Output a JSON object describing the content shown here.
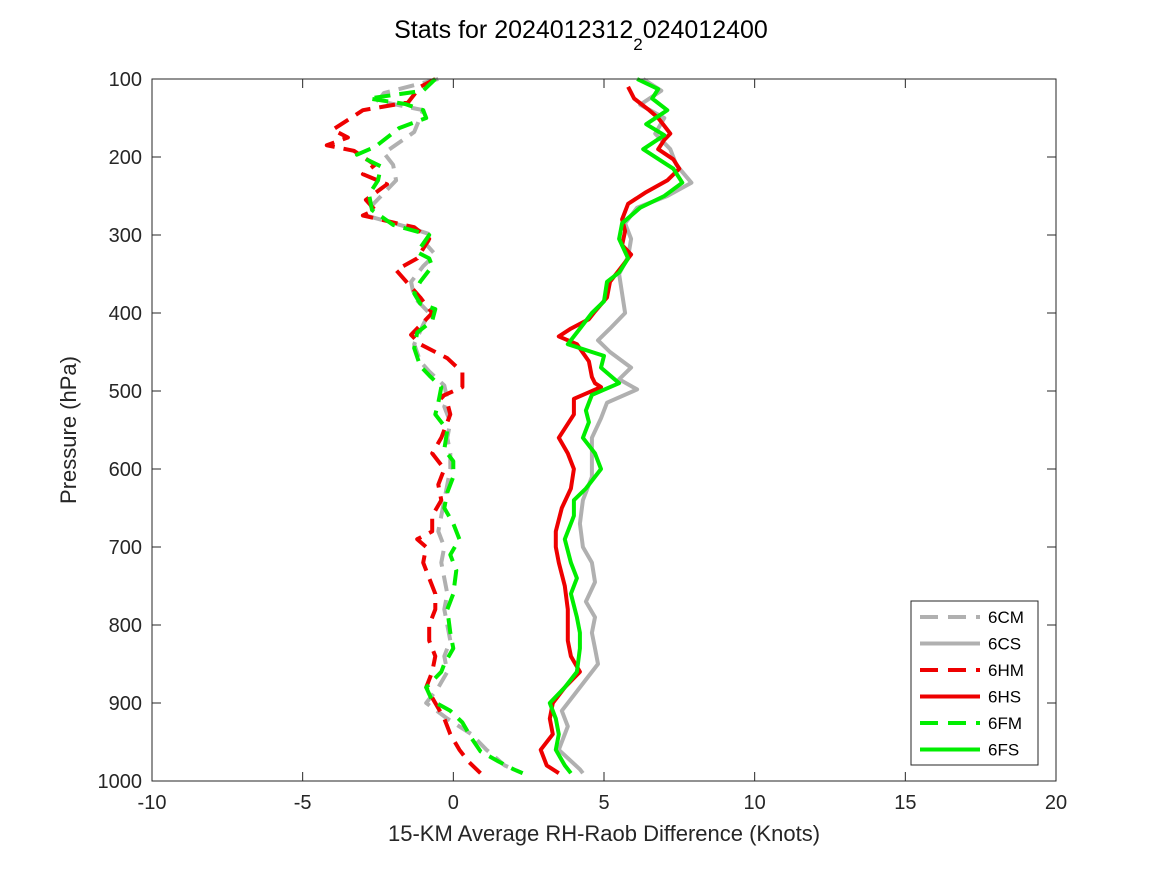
{
  "chart_data": {
    "type": "line",
    "title_main": "Stats for 2024012312",
    "title_sub": "2",
    "title_tail": "024012400",
    "xlabel": "15-KM Average RH-Raob Difference (Knots)",
    "ylabel": "Pressure (hPa)",
    "xlim": [
      -10,
      20
    ],
    "ylim": [
      100,
      1000
    ],
    "y_reversed": true,
    "xticks": [
      "-10",
      "-5",
      "0",
      "5",
      "10",
      "15",
      "20"
    ],
    "yticks": [
      "100",
      "200",
      "300",
      "400",
      "500",
      "600",
      "700",
      "800",
      "900",
      "1000"
    ],
    "grid": false,
    "legend_position": "bottom-right",
    "series": [
      {
        "name": "6CM",
        "color": "#b0b0b0",
        "dash": true,
        "points": [
          [
            -0.5,
            100
          ],
          [
            -2.3,
            118
          ],
          [
            -2.5,
            128
          ],
          [
            -1.0,
            140
          ],
          [
            -1.3,
            168
          ],
          [
            -2.3,
            195
          ],
          [
            -2.0,
            210
          ],
          [
            -1.9,
            230
          ],
          [
            -2.7,
            262
          ],
          [
            -2.9,
            275
          ],
          [
            -1.5,
            290
          ],
          [
            -0.7,
            300
          ],
          [
            -0.9,
            312
          ],
          [
            -0.6,
            325
          ],
          [
            -1.0,
            340
          ],
          [
            -1.4,
            360
          ],
          [
            -1.3,
            380
          ],
          [
            -0.8,
            400
          ],
          [
            -1.0,
            415
          ],
          [
            -1.3,
            440
          ],
          [
            -1.1,
            462
          ],
          [
            -0.8,
            475
          ],
          [
            -0.3,
            493
          ],
          [
            -0.2,
            510
          ],
          [
            -0.3,
            520
          ],
          [
            -0.1,
            540
          ],
          [
            -0.2,
            560
          ],
          [
            -0.1,
            580
          ],
          [
            -0.1,
            600
          ],
          [
            -0.2,
            620
          ],
          [
            -0.3,
            640
          ],
          [
            -0.4,
            660
          ],
          [
            -0.5,
            680
          ],
          [
            -0.3,
            700
          ],
          [
            -0.4,
            720
          ],
          [
            -0.3,
            740
          ],
          [
            -0.2,
            760
          ],
          [
            -0.3,
            780
          ],
          [
            -0.2,
            800
          ],
          [
            -0.1,
            820
          ],
          [
            -0.3,
            840
          ],
          [
            -0.2,
            860
          ],
          [
            -0.5,
            880
          ],
          [
            -0.9,
            900
          ],
          [
            -0.2,
            920
          ],
          [
            0.6,
            940
          ],
          [
            1.1,
            960
          ],
          [
            1.7,
            980
          ],
          [
            2.3,
            990
          ]
        ]
      },
      {
        "name": "6CS",
        "color": "#b0b0b0",
        "dash": false,
        "points": [
          [
            6.3,
            100
          ],
          [
            6.9,
            115
          ],
          [
            6.2,
            133
          ],
          [
            7.0,
            150
          ],
          [
            6.7,
            170
          ],
          [
            7.2,
            190
          ],
          [
            7.4,
            210
          ],
          [
            7.9,
            233
          ],
          [
            7.1,
            250
          ],
          [
            6.1,
            265
          ],
          [
            5.7,
            285
          ],
          [
            5.9,
            305
          ],
          [
            5.8,
            328
          ],
          [
            5.5,
            350
          ],
          [
            5.6,
            375
          ],
          [
            5.7,
            400
          ],
          [
            5.2,
            420
          ],
          [
            4.8,
            435
          ],
          [
            5.2,
            450
          ],
          [
            5.9,
            470
          ],
          [
            5.5,
            485
          ],
          [
            6.1,
            498
          ],
          [
            5.1,
            515
          ],
          [
            4.9,
            535
          ],
          [
            4.6,
            560
          ],
          [
            4.6,
            585
          ],
          [
            4.6,
            610
          ],
          [
            4.3,
            640
          ],
          [
            4.2,
            670
          ],
          [
            4.3,
            700
          ],
          [
            4.6,
            720
          ],
          [
            4.7,
            745
          ],
          [
            4.4,
            770
          ],
          [
            4.7,
            790
          ],
          [
            4.6,
            810
          ],
          [
            4.7,
            830
          ],
          [
            4.8,
            850
          ],
          [
            4.4,
            870
          ],
          [
            4.0,
            890
          ],
          [
            3.6,
            910
          ],
          [
            3.8,
            930
          ],
          [
            3.5,
            960
          ],
          [
            4.2,
            985
          ],
          [
            4.3,
            990
          ]
        ]
      },
      {
        "name": "6HM",
        "color": "#ee0000",
        "dash": true,
        "points": [
          [
            -0.6,
            100
          ],
          [
            -1.1,
            110
          ],
          [
            -1.5,
            130
          ],
          [
            -3.0,
            140
          ],
          [
            -4.0,
            165
          ],
          [
            -3.5,
            175
          ],
          [
            -4.2,
            185
          ],
          [
            -3.3,
            192
          ],
          [
            -2.6,
            210
          ],
          [
            -3.0,
            222
          ],
          [
            -2.2,
            235
          ],
          [
            -2.9,
            255
          ],
          [
            -2.6,
            268
          ],
          [
            -3.0,
            275
          ],
          [
            -1.3,
            290
          ],
          [
            -0.8,
            305
          ],
          [
            -1.2,
            330
          ],
          [
            -1.9,
            345
          ],
          [
            -1.1,
            380
          ],
          [
            -0.7,
            400
          ],
          [
            -1.4,
            428
          ],
          [
            -1.1,
            440
          ],
          [
            -0.2,
            458
          ],
          [
            0.3,
            476
          ],
          [
            0.3,
            495
          ],
          [
            -0.4,
            507
          ],
          [
            -0.2,
            515
          ],
          [
            -0.1,
            530
          ],
          [
            -0.4,
            560
          ],
          [
            -0.7,
            580
          ],
          [
            -0.3,
            600
          ],
          [
            -0.5,
            620
          ],
          [
            -0.4,
            640
          ],
          [
            -0.7,
            660
          ],
          [
            -0.7,
            680
          ],
          [
            -1.2,
            690
          ],
          [
            -0.9,
            700
          ],
          [
            -1.0,
            720
          ],
          [
            -0.8,
            740
          ],
          [
            -0.6,
            760
          ],
          [
            -0.6,
            780
          ],
          [
            -0.8,
            800
          ],
          [
            -0.8,
            820
          ],
          [
            -0.6,
            840
          ],
          [
            -0.7,
            860
          ],
          [
            -0.9,
            880
          ],
          [
            -0.6,
            900
          ],
          [
            -0.3,
            920
          ],
          [
            -0.1,
            940
          ],
          [
            0.2,
            960
          ],
          [
            0.5,
            975
          ],
          [
            0.9,
            990
          ]
        ]
      },
      {
        "name": "6HS",
        "color": "#ee0000",
        "dash": false,
        "points": [
          [
            5.8,
            110
          ],
          [
            6.0,
            125
          ],
          [
            6.5,
            140
          ],
          [
            6.8,
            150
          ],
          [
            7.2,
            170
          ],
          [
            7.0,
            178
          ],
          [
            6.8,
            190
          ],
          [
            7.3,
            203
          ],
          [
            7.5,
            215
          ],
          [
            7.1,
            230
          ],
          [
            6.4,
            245
          ],
          [
            5.8,
            260
          ],
          [
            5.6,
            280
          ],
          [
            5.7,
            295
          ],
          [
            5.6,
            313
          ],
          [
            5.9,
            325
          ],
          [
            5.6,
            340
          ],
          [
            5.2,
            360
          ],
          [
            5.1,
            380
          ],
          [
            4.7,
            398
          ],
          [
            4.5,
            408
          ],
          [
            3.9,
            420
          ],
          [
            3.5,
            430
          ],
          [
            4.1,
            440
          ],
          [
            4.5,
            462
          ],
          [
            4.6,
            482
          ],
          [
            4.7,
            490
          ],
          [
            4.9,
            495
          ],
          [
            4.0,
            510
          ],
          [
            4.0,
            530
          ],
          [
            3.5,
            560
          ],
          [
            3.8,
            580
          ],
          [
            4.0,
            600
          ],
          [
            3.9,
            625
          ],
          [
            3.6,
            650
          ],
          [
            3.4,
            680
          ],
          [
            3.4,
            700
          ],
          [
            3.5,
            720
          ],
          [
            3.7,
            750
          ],
          [
            3.8,
            780
          ],
          [
            3.8,
            800
          ],
          [
            3.8,
            820
          ],
          [
            3.9,
            840
          ],
          [
            4.2,
            860
          ],
          [
            3.7,
            880
          ],
          [
            3.3,
            900
          ],
          [
            3.2,
            920
          ],
          [
            3.3,
            940
          ],
          [
            2.9,
            960
          ],
          [
            3.1,
            980
          ],
          [
            3.5,
            990
          ]
        ]
      },
      {
        "name": "6FM",
        "color": "#00ee00",
        "dash": true,
        "points": [
          [
            -0.6,
            100
          ],
          [
            -1.0,
            115
          ],
          [
            -2.8,
            125
          ],
          [
            -1.6,
            132
          ],
          [
            -1.0,
            140
          ],
          [
            -0.9,
            150
          ],
          [
            -1.8,
            163
          ],
          [
            -2.1,
            172
          ],
          [
            -2.6,
            187
          ],
          [
            -3.2,
            197
          ],
          [
            -2.4,
            212
          ],
          [
            -2.5,
            230
          ],
          [
            -2.8,
            248
          ],
          [
            -2.7,
            268
          ],
          [
            -2.0,
            287
          ],
          [
            -0.8,
            300
          ],
          [
            -1.2,
            322
          ],
          [
            -0.8,
            330
          ],
          [
            -0.7,
            340
          ],
          [
            -1.1,
            360
          ],
          [
            -1.3,
            375
          ],
          [
            -1.1,
            388
          ],
          [
            -0.6,
            395
          ],
          [
            -0.7,
            410
          ],
          [
            -1.2,
            425
          ],
          [
            -1.3,
            445
          ],
          [
            -1.1,
            468
          ],
          [
            -0.8,
            480
          ],
          [
            -0.4,
            495
          ],
          [
            -0.5,
            515
          ],
          [
            -0.6,
            530
          ],
          [
            -0.2,
            550
          ],
          [
            -0.3,
            575
          ],
          [
            0.0,
            590
          ],
          [
            0.0,
            610
          ],
          [
            -0.2,
            630
          ],
          [
            -0.3,
            650
          ],
          [
            0.0,
            670
          ],
          [
            0.2,
            690
          ],
          [
            -0.1,
            710
          ],
          [
            0.1,
            730
          ],
          [
            0.0,
            760
          ],
          [
            -0.2,
            780
          ],
          [
            -0.1,
            810
          ],
          [
            0.0,
            830
          ],
          [
            -0.3,
            850
          ],
          [
            -0.4,
            860
          ],
          [
            -0.9,
            880
          ],
          [
            -0.7,
            897
          ],
          [
            -0.1,
            910
          ],
          [
            0.3,
            925
          ],
          [
            0.6,
            945
          ],
          [
            0.9,
            962
          ],
          [
            1.5,
            975
          ],
          [
            2.0,
            985
          ],
          [
            2.3,
            990
          ]
        ]
      },
      {
        "name": "6FS",
        "color": "#00ee00",
        "dash": false,
        "points": [
          [
            6.1,
            100
          ],
          [
            6.8,
            113
          ],
          [
            6.6,
            125
          ],
          [
            7.1,
            140
          ],
          [
            6.4,
            158
          ],
          [
            7.0,
            172
          ],
          [
            6.3,
            190
          ],
          [
            6.9,
            205
          ],
          [
            7.3,
            215
          ],
          [
            7.6,
            233
          ],
          [
            7.0,
            250
          ],
          [
            6.2,
            265
          ],
          [
            5.6,
            285
          ],
          [
            5.5,
            305
          ],
          [
            5.8,
            330
          ],
          [
            5.5,
            348
          ],
          [
            5.1,
            360
          ],
          [
            5.0,
            385
          ],
          [
            4.6,
            400
          ],
          [
            4.2,
            420
          ],
          [
            3.8,
            440
          ],
          [
            4.6,
            450
          ],
          [
            5.0,
            455
          ],
          [
            4.9,
            470
          ],
          [
            5.5,
            490
          ],
          [
            4.6,
            505
          ],
          [
            4.4,
            525
          ],
          [
            4.5,
            540
          ],
          [
            4.3,
            560
          ],
          [
            4.7,
            580
          ],
          [
            4.9,
            600
          ],
          [
            4.4,
            625
          ],
          [
            4.0,
            640
          ],
          [
            4.0,
            660
          ],
          [
            3.7,
            690
          ],
          [
            3.9,
            720
          ],
          [
            4.1,
            740
          ],
          [
            3.9,
            760
          ],
          [
            4.1,
            790
          ],
          [
            4.2,
            810
          ],
          [
            4.2,
            830
          ],
          [
            4.1,
            860
          ],
          [
            3.7,
            880
          ],
          [
            3.2,
            900
          ],
          [
            3.4,
            920
          ],
          [
            3.5,
            940
          ],
          [
            3.4,
            960
          ],
          [
            3.7,
            980
          ],
          [
            3.9,
            990
          ]
        ]
      }
    ]
  }
}
